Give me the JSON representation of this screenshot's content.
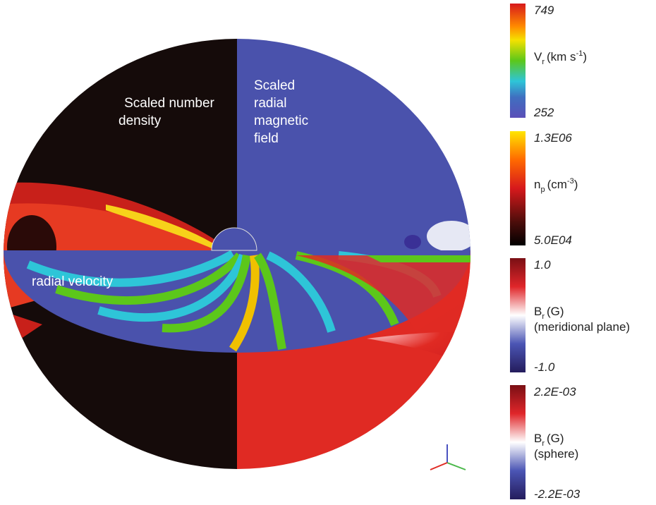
{
  "labels": {
    "density": [
      "Scaled number",
      "density"
    ],
    "magnetic": [
      "Scaled",
      "radial",
      "magnetic",
      "field"
    ],
    "velocity": "radial velocity"
  },
  "colorbars": [
    {
      "max": "749",
      "min": "252",
      "symbol": "V",
      "sub": "r",
      "unit": "(km s",
      "sup": "-1",
      "close": ")",
      "notes": []
    },
    {
      "max": "1.3E06",
      "min": "5.0E04",
      "symbol": "n",
      "sub": "p",
      "unit": "(cm",
      "sup": "-3",
      "close": ")",
      "notes": []
    },
    {
      "max": "1.0",
      "min": "-1.0",
      "symbol": "B",
      "sub": "r",
      "unit": "(G)",
      "sup": null,
      "close": null,
      "notes": [
        "(meridional plane)"
      ]
    },
    {
      "max": "2.2E-03",
      "min": "-2.2E-03",
      "symbol": "B",
      "sub": "r",
      "unit": "(G)",
      "sup": null,
      "close": null,
      "notes": [
        "(sphere)"
      ]
    }
  ]
}
